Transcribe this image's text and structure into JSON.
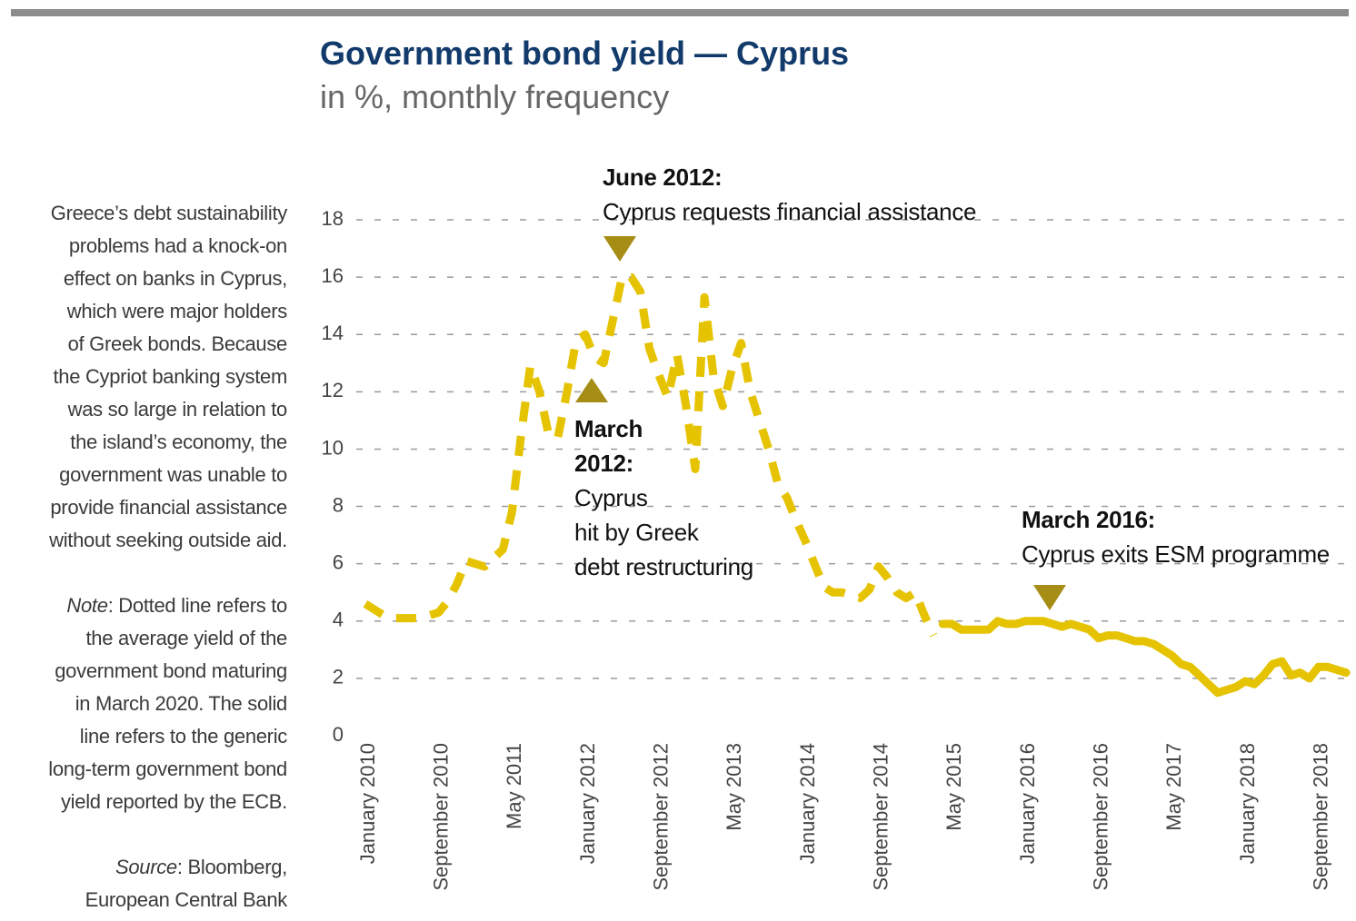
{
  "sidebar": {
    "lines": [
      "Greece’s debt sustainability",
      "problems had a knock-on",
      "effect on banks in Cyprus,",
      "which were major holders",
      "of Greek bonds. Because",
      "the Cypriot banking system",
      "was so large in relation to",
      "the island’s economy, the",
      "government was unable to",
      "provide financial assistance",
      "without seeking outside aid."
    ],
    "note": {
      "label": "Note",
      "lines": [
        ": Dotted line refers to",
        "the average yield of the",
        "government bond maturing",
        "in March 2020. The solid",
        "line refers to the generic",
        "long-term government bond",
        "yield reported by the ECB."
      ]
    },
    "source": {
      "label": "Source",
      "lines": [
        ": Bloomberg,",
        "European Central Bank"
      ]
    }
  },
  "chart_data": {
    "type": "line",
    "title": "Government bond yield — Cyprus",
    "subtitle": "in %, monthly frequency",
    "x": [
      "2010-01",
      "2010-02",
      "2010-03",
      "2010-04",
      "2010-05",
      "2010-06",
      "2010-07",
      "2010-08",
      "2010-09",
      "2010-10",
      "2010-11",
      "2010-12",
      "2011-01",
      "2011-02",
      "2011-03",
      "2011-04",
      "2011-05",
      "2011-06",
      "2011-07",
      "2011-08",
      "2011-09",
      "2011-10",
      "2011-11",
      "2011-12",
      "2012-01",
      "2012-02",
      "2012-03",
      "2012-04",
      "2012-05",
      "2012-06",
      "2012-07",
      "2012-08",
      "2012-09",
      "2012-10",
      "2012-11",
      "2012-12",
      "2013-01",
      "2013-02",
      "2013-03",
      "2013-04",
      "2013-05",
      "2013-06",
      "2013-07",
      "2013-08",
      "2013-09",
      "2013-10",
      "2013-11",
      "2013-12",
      "2014-01",
      "2014-02",
      "2014-03",
      "2014-04",
      "2014-05",
      "2014-06",
      "2014-07",
      "2014-08",
      "2014-09",
      "2014-10",
      "2014-11",
      "2014-12",
      "2015-01",
      "2015-02",
      "2015-03",
      "2015-04",
      "2015-05",
      "2015-06",
      "2015-07",
      "2015-08",
      "2015-09",
      "2015-10",
      "2015-11",
      "2015-12",
      "2016-01",
      "2016-02",
      "2016-03",
      "2016-04",
      "2016-05",
      "2016-06",
      "2016-07",
      "2016-08",
      "2016-09",
      "2016-10",
      "2016-11",
      "2016-12",
      "2017-01",
      "2017-02",
      "2017-03",
      "2017-04",
      "2017-05",
      "2017-06",
      "2017-07",
      "2017-08",
      "2017-09",
      "2017-10",
      "2017-11",
      "2017-12",
      "2018-01",
      "2018-02",
      "2018-03",
      "2018-04",
      "2018-05",
      "2018-06",
      "2018-07",
      "2018-08",
      "2018-09",
      "2018-10",
      "2018-11",
      "2018-12"
    ],
    "series": [
      {
        "color": "#e6c300",
        "style": "dashed",
        "values": [
          4.6,
          4.4,
          4.2,
          4.1,
          4.1,
          4.1,
          4.1,
          4.2,
          4.3,
          4.7,
          5.3,
          6.1,
          6.0,
          5.9,
          6.2,
          6.5,
          7.8,
          10.5,
          12.9,
          12.0,
          10.5,
          10.4,
          12.0,
          13.8,
          14.0,
          13.2,
          13.0,
          14.5,
          16.0,
          16.0,
          15.5,
          13.5,
          12.6,
          11.8,
          13.3,
          11.5,
          9.3,
          15.3,
          12.5,
          11.5,
          12.8,
          13.7,
          12.0,
          11.0,
          10.0,
          8.8,
          8.3,
          7.5,
          6.8,
          6.0,
          5.2,
          5.0,
          5.0,
          4.9,
          4.8,
          5.1,
          5.9,
          5.5,
          5.0,
          4.8,
          5.0,
          4.2,
          3.5,
          null,
          null,
          null,
          null,
          null,
          null,
          null,
          null,
          null,
          null,
          null,
          null,
          null,
          null,
          null,
          null,
          null,
          null,
          null,
          null,
          null,
          null,
          null,
          null,
          null,
          null,
          null,
          null,
          null,
          null,
          null,
          null,
          null,
          null,
          null,
          null,
          null,
          null,
          null,
          null,
          null,
          null,
          null,
          null,
          null
        ]
      },
      {
        "color": "#e6c300",
        "style": "solid",
        "values": [
          null,
          null,
          null,
          null,
          null,
          null,
          null,
          null,
          null,
          null,
          null,
          null,
          null,
          null,
          null,
          null,
          null,
          null,
          null,
          null,
          null,
          null,
          null,
          null,
          null,
          null,
          null,
          null,
          null,
          null,
          null,
          null,
          null,
          null,
          null,
          null,
          null,
          null,
          null,
          null,
          null,
          null,
          null,
          null,
          null,
          null,
          null,
          null,
          null,
          null,
          null,
          null,
          null,
          null,
          null,
          null,
          null,
          null,
          null,
          null,
          null,
          null,
          null,
          3.9,
          3.9,
          3.7,
          3.7,
          3.7,
          3.7,
          4.0,
          3.9,
          3.9,
          4.0,
          4.0,
          4.0,
          3.9,
          3.8,
          3.9,
          3.8,
          3.7,
          3.4,
          3.5,
          3.5,
          3.4,
          3.3,
          3.3,
          3.2,
          3.0,
          2.8,
          2.5,
          2.4,
          2.1,
          1.8,
          1.5,
          1.6,
          1.7,
          1.9,
          1.8,
          2.1,
          2.5,
          2.6,
          2.1,
          2.2,
          2.0,
          2.4,
          2.4,
          2.3,
          2.2
        ]
      }
    ],
    "xlim": [
      "2010-01",
      "2018-12"
    ],
    "xticks": [
      {
        "value": "2010-01",
        "label": "January 2010"
      },
      {
        "value": "2010-09",
        "label": "September 2010"
      },
      {
        "value": "2011-05",
        "label": "May 2011"
      },
      {
        "value": "2012-01",
        "label": "January 2012"
      },
      {
        "value": "2012-09",
        "label": "September 2012"
      },
      {
        "value": "2013-05",
        "label": "May 2013"
      },
      {
        "value": "2014-01",
        "label": "January 2014"
      },
      {
        "value": "2014-09",
        "label": "September 2014"
      },
      {
        "value": "2015-05",
        "label": "May 2015"
      },
      {
        "value": "2016-01",
        "label": "January 2016"
      },
      {
        "value": "2016-09",
        "label": "September 2016"
      },
      {
        "value": "2017-05",
        "label": "May 2017"
      },
      {
        "value": "2018-01",
        "label": "January 2018"
      },
      {
        "value": "2018-09",
        "label": "September 2018"
      }
    ],
    "ylim": [
      0,
      18
    ],
    "yticks": [
      0,
      2,
      4,
      6,
      8,
      10,
      12,
      14,
      16,
      18
    ],
    "grid": true,
    "annotations": [
      {
        "title": [
          "June 2012:"
        ],
        "text": [
          "Cyprus requests financial assistance"
        ]
      },
      {
        "title": [
          "March",
          "2012:"
        ],
        "text": [
          "Cyprus",
          "hit by Greek",
          "debt restructuring"
        ]
      },
      {
        "title": [
          "March 2016:"
        ],
        "text": [
          "Cyprus exits ESM programme"
        ]
      }
    ]
  }
}
